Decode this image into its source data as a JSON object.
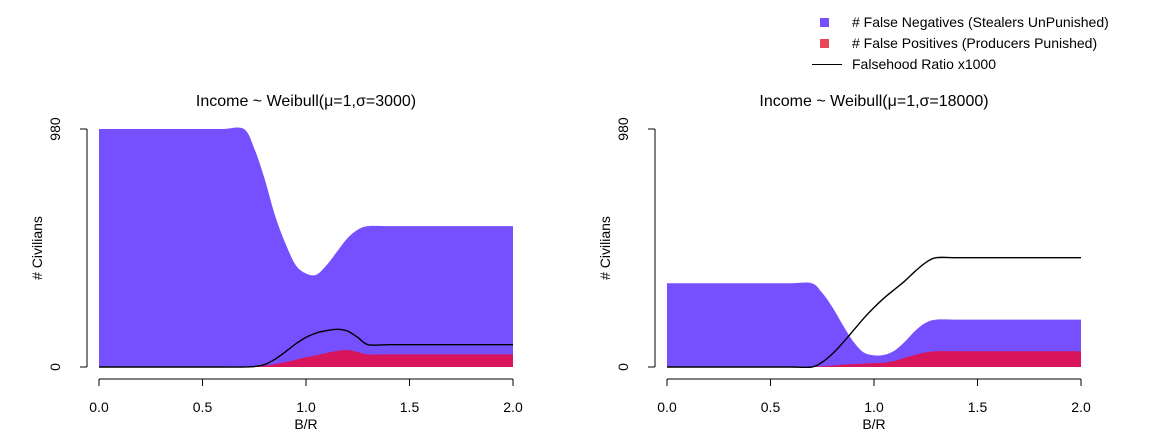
{
  "chart_data": [
    {
      "type": "area",
      "title": "Income ~ Weibull(μ=1,σ=3000)",
      "xlabel": "B/R",
      "ylabel": "# Civilians",
      "xlim": [
        0,
        2
      ],
      "ylim": [
        0,
        980
      ],
      "xticks": [
        "0.0",
        "0.5",
        "1.0",
        "1.5",
        "2.0"
      ],
      "yticks": [
        "0",
        "980"
      ],
      "grid": false,
      "x": [
        0,
        0.1,
        0.2,
        0.3,
        0.4,
        0.5,
        0.6,
        0.7,
        0.75,
        0.8,
        0.85,
        0.9,
        0.95,
        1.0,
        1.05,
        1.1,
        1.15,
        1.2,
        1.25,
        1.3,
        1.4,
        1.5,
        1.6,
        1.7,
        1.8,
        1.9,
        2.0
      ],
      "series": [
        {
          "name": "# False Negatives (Stealers UnPunished)",
          "color": "#7650ff",
          "values": [
            980,
            980,
            980,
            980,
            980,
            980,
            980,
            980,
            900,
            775,
            625,
            510,
            420,
            385,
            380,
            420,
            475,
            530,
            565,
            580,
            580,
            580,
            580,
            580,
            580,
            580,
            580
          ]
        },
        {
          "name": "# False Positives (Producers Punished)",
          "color": "#d8145a",
          "values": [
            0,
            0,
            0,
            0,
            0,
            0,
            0,
            0,
            0,
            5,
            12,
            20,
            30,
            40,
            48,
            58,
            66,
            70,
            62,
            52,
            52,
            52,
            52,
            52,
            52,
            52,
            52
          ]
        },
        {
          "name": "Falsehood Ratio x1000",
          "color": "#000000",
          "values": [
            0,
            0,
            0,
            0,
            0,
            0,
            0,
            0,
            2,
            10,
            32,
            62,
            95,
            122,
            140,
            150,
            155,
            148,
            122,
            92,
            92,
            92,
            92,
            92,
            92,
            92,
            92
          ]
        }
      ]
    },
    {
      "type": "area",
      "title": "Income ~ Weibull(μ=1,σ=18000)",
      "xlabel": "B/R",
      "ylabel": "# Civilians",
      "xlim": [
        0,
        2
      ],
      "ylim": [
        0,
        980
      ],
      "xticks": [
        "0.0",
        "0.5",
        "1.0",
        "1.5",
        "2.0"
      ],
      "yticks": [
        "0",
        "980"
      ],
      "grid": false,
      "x": [
        0,
        0.1,
        0.2,
        0.3,
        0.4,
        0.5,
        0.6,
        0.7,
        0.75,
        0.8,
        0.85,
        0.9,
        0.95,
        1.0,
        1.05,
        1.1,
        1.15,
        1.2,
        1.25,
        1.3,
        1.4,
        1.5,
        1.6,
        1.7,
        1.8,
        1.9,
        2.0
      ],
      "series": [
        {
          "name": "# False Negatives (Stealers UnPunished)",
          "color": "#7650ff",
          "values": [
            345,
            345,
            345,
            345,
            345,
            345,
            345,
            345,
            305,
            245,
            172,
            105,
            60,
            48,
            50,
            68,
            105,
            150,
            182,
            195,
            195,
            195,
            195,
            195,
            195,
            195,
            195
          ]
        },
        {
          "name": "# False Positives (Producers Punished)",
          "color": "#d8145a",
          "values": [
            0,
            0,
            0,
            0,
            0,
            0,
            0,
            0,
            3,
            6,
            10,
            12,
            14,
            16,
            18,
            25,
            38,
            50,
            60,
            65,
            65,
            65,
            65,
            65,
            65,
            65,
            65
          ]
        },
        {
          "name": "Falsehood Ratio x1000",
          "color": "#000000",
          "values": [
            0,
            0,
            0,
            0,
            0,
            0,
            0,
            0,
            20,
            55,
            100,
            150,
            200,
            245,
            285,
            320,
            355,
            395,
            430,
            450,
            450,
            450,
            450,
            450,
            450,
            450,
            450
          ]
        }
      ]
    }
  ],
  "legend": {
    "items": [
      {
        "label": "# False Negatives (Stealers UnPunished)",
        "color": "#7650ff",
        "kind": "square"
      },
      {
        "label": "# False Positives (Producers Punished)",
        "color": "#e8475a",
        "kind": "square"
      },
      {
        "label": "Falsehood Ratio x1000",
        "color": "#000000",
        "kind": "line"
      }
    ]
  }
}
